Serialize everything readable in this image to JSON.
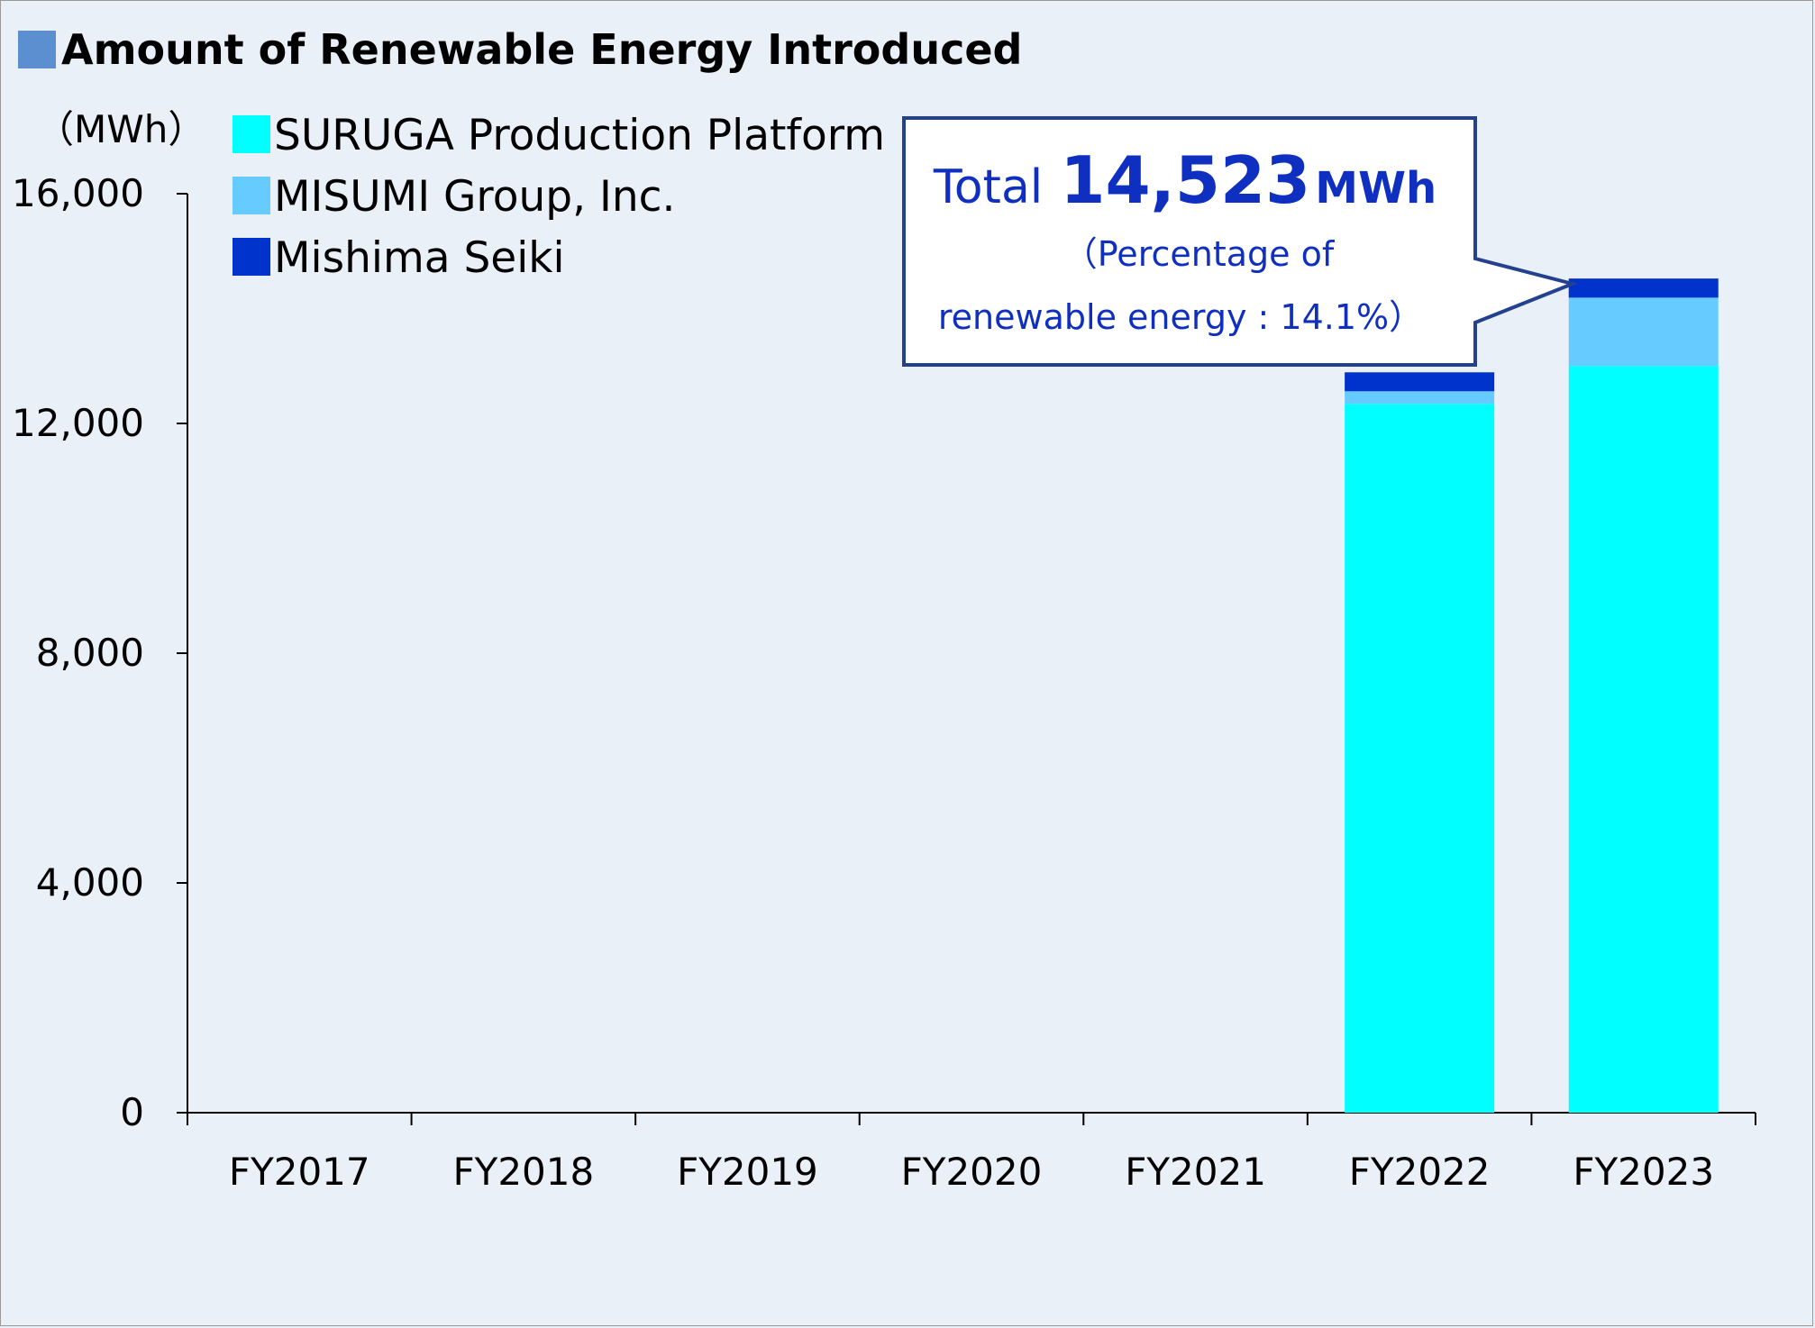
{
  "colors": {
    "title_marker": "#5b8fd0",
    "background": "#e9f0f7",
    "callout_border": "#24418f",
    "callout_text": "#0f2fc0"
  },
  "chart_data": {
    "type": "bar",
    "stacked": true,
    "title": "Amount of Renewable Energy Introduced",
    "unit_label": "（MWh）",
    "ylabel": "",
    "xlabel": "",
    "ylim": [
      0,
      16000
    ],
    "yticks": [
      0,
      4000,
      8000,
      12000,
      16000
    ],
    "ytick_labels": [
      "0",
      "4,000",
      "8,000",
      "12,000",
      "16,000"
    ],
    "grid": false,
    "legend_position": "top-left",
    "categories": [
      "FY2017",
      "FY2018",
      "FY2019",
      "FY2020",
      "FY2021",
      "FY2022",
      "FY2023"
    ],
    "series": [
      {
        "name": "SURUGA Production Platform",
        "color": "#00ffff",
        "values": [
          0,
          0,
          0,
          0,
          0,
          12340,
          13000
        ]
      },
      {
        "name": "MISUMI Group, Inc.",
        "color": "#66ccff",
        "values": [
          0,
          0,
          0,
          0,
          0,
          220,
          1190
        ]
      },
      {
        "name": "Mishima Seiki",
        "color": "#0033cc",
        "values": [
          0,
          0,
          0,
          0,
          0,
          330,
          333
        ]
      }
    ],
    "annotation": {
      "category": "FY2023",
      "total_word": "Total",
      "total_value": "14,523",
      "total_unit": "MWh",
      "note_line1": "（Percentage of",
      "note_line2": "renewable energy : 14.1%）"
    }
  }
}
